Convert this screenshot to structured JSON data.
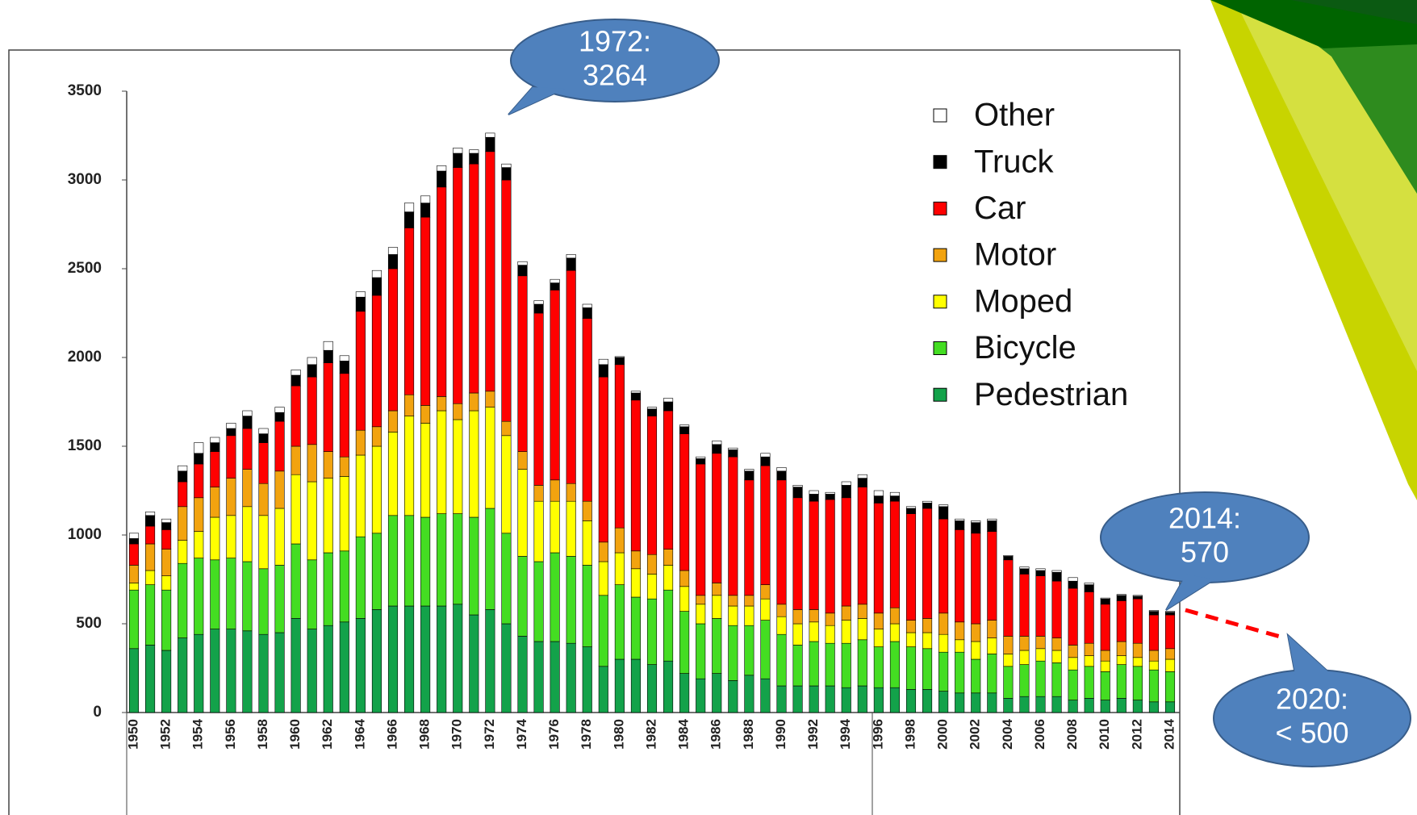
{
  "chart_data": {
    "type": "stacked-bar",
    "categories": [
      "1950",
      null,
      "1952",
      null,
      "1954",
      null,
      "1956",
      null,
      "1958",
      null,
      "1960",
      null,
      "1962",
      null,
      "1964",
      null,
      "1966",
      null,
      "1968",
      null,
      "1970",
      null,
      "1972",
      null,
      "1974",
      null,
      "1976",
      null,
      "1978",
      null,
      "1980",
      null,
      "1982",
      null,
      "1984",
      null,
      "1986",
      null,
      "1988",
      null,
      "1990",
      null,
      "1992",
      null,
      "1994",
      null,
      "1996",
      null,
      "1998",
      null,
      "2000",
      null,
      "2002",
      null,
      "2004",
      null,
      "2006",
      null,
      "2008",
      null,
      "2010",
      null,
      "2012",
      null,
      "2014"
    ],
    "series": [
      {
        "name": "Pedestrian",
        "color": "#13a24a",
        "values": [
          360,
          380,
          350,
          420,
          440,
          470,
          470,
          460,
          440,
          450,
          530,
          470,
          490,
          510,
          530,
          580,
          600,
          600,
          600,
          600,
          610,
          550,
          580,
          500,
          430,
          400,
          400,
          390,
          370,
          260,
          300,
          300,
          270,
          290,
          220,
          190,
          220,
          180,
          210,
          190,
          150,
          150,
          150,
          150,
          140,
          150,
          140,
          140,
          130,
          130,
          120,
          110,
          110,
          110,
          80,
          90,
          90,
          90,
          70,
          80,
          70,
          80,
          70,
          60,
          60
        ]
      },
      {
        "name": "Bicycle",
        "color": "#44dd22",
        "values": [
          330,
          340,
          340,
          420,
          430,
          390,
          400,
          390,
          370,
          380,
          420,
          390,
          410,
          400,
          460,
          430,
          510,
          510,
          500,
          520,
          510,
          550,
          570,
          510,
          450,
          450,
          500,
          490,
          460,
          400,
          420,
          350,
          370,
          400,
          350,
          310,
          310,
          310,
          280,
          330,
          290,
          230,
          250,
          240,
          250,
          260,
          230,
          260,
          240,
          230,
          220,
          230,
          190,
          220,
          180,
          180,
          200,
          190,
          170,
          180,
          160,
          190,
          190,
          180,
          170
        ]
      },
      {
        "name": "Moped",
        "color": "#ffff00",
        "values": [
          40,
          80,
          80,
          130,
          150,
          240,
          240,
          310,
          300,
          320,
          390,
          440,
          420,
          420,
          460,
          490,
          470,
          560,
          530,
          580,
          530,
          600,
          570,
          550,
          490,
          340,
          290,
          310,
          250,
          190,
          180,
          160,
          140,
          140,
          140,
          110,
          130,
          110,
          110,
          120,
          100,
          120,
          110,
          100,
          130,
          120,
          100,
          100,
          80,
          90,
          100,
          70,
          100,
          90,
          70,
          80,
          70,
          70,
          70,
          60,
          60,
          50,
          50,
          50,
          70
        ]
      },
      {
        "name": "Motor",
        "color": "#f2a30f",
        "values": [
          100,
          150,
          150,
          190,
          190,
          170,
          210,
          210,
          180,
          210,
          160,
          210,
          150,
          110,
          140,
          110,
          120,
          120,
          100,
          80,
          90,
          100,
          90,
          80,
          100,
          90,
          120,
          100,
          110,
          110,
          140,
          100,
          110,
          90,
          90,
          50,
          70,
          60,
          60,
          80,
          70,
          80,
          70,
          70,
          80,
          80,
          90,
          90,
          70,
          80,
          120,
          100,
          100,
          100,
          100,
          80,
          70,
          70,
          70,
          70,
          60,
          80,
          80,
          60,
          60
        ]
      },
      {
        "name": "Car",
        "color": "#ff0000",
        "values": [
          120,
          100,
          110,
          140,
          190,
          200,
          240,
          230,
          230,
          280,
          340,
          380,
          500,
          470,
          670,
          740,
          800,
          940,
          1060,
          1180,
          1330,
          1290,
          1350,
          1360,
          990,
          970,
          1070,
          1200,
          1030,
          930,
          920,
          850,
          780,
          780,
          770,
          740,
          730,
          780,
          650,
          670,
          700,
          630,
          610,
          640,
          610,
          660,
          620,
          600,
          600,
          620,
          530,
          520,
          510,
          500,
          430,
          350,
          340,
          320,
          320,
          290,
          260,
          230,
          250,
          200,
          190
        ]
      },
      {
        "name": "Truck",
        "color": "#000000",
        "values": [
          30,
          60,
          40,
          60,
          60,
          50,
          40,
          70,
          50,
          50,
          60,
          70,
          70,
          70,
          80,
          100,
          80,
          90,
          80,
          90,
          80,
          60,
          80,
          70,
          60,
          50,
          40,
          70,
          60,
          70,
          40,
          40,
          40,
          50,
          40,
          30,
          50,
          40,
          50,
          50,
          50,
          60,
          40,
          30,
          70,
          50,
          40,
          30,
          30,
          30,
          70,
          50,
          60,
          60,
          20,
          30,
          30,
          50,
          40,
          40,
          30,
          30,
          15,
          20,
          15
        ]
      },
      {
        "name": "Other",
        "color": "#ffffff",
        "values": [
          30,
          20,
          20,
          30,
          60,
          30,
          30,
          30,
          30,
          30,
          30,
          40,
          50,
          30,
          30,
          40,
          40,
          50,
          40,
          30,
          30,
          20,
          24,
          20,
          20,
          20,
          20,
          20,
          20,
          30,
          5,
          10,
          10,
          20,
          10,
          10,
          20,
          10,
          10,
          20,
          20,
          10,
          20,
          10,
          20,
          20,
          30,
          20,
          10,
          10,
          10,
          10,
          10,
          10,
          5,
          10,
          10,
          10,
          20,
          10,
          5,
          5,
          5,
          5,
          5
        ]
      }
    ],
    "ylim": [
      0,
      3500
    ],
    "yticks": [
      0,
      500,
      1000,
      1500,
      2000,
      2500,
      3000,
      3500
    ],
    "grid": false,
    "legend": "top-right",
    "annotations": [
      [
        "1972:",
        "3264"
      ],
      [
        "2014:",
        "570"
      ],
      [
        "2020:",
        "< 500"
      ]
    ]
  }
}
